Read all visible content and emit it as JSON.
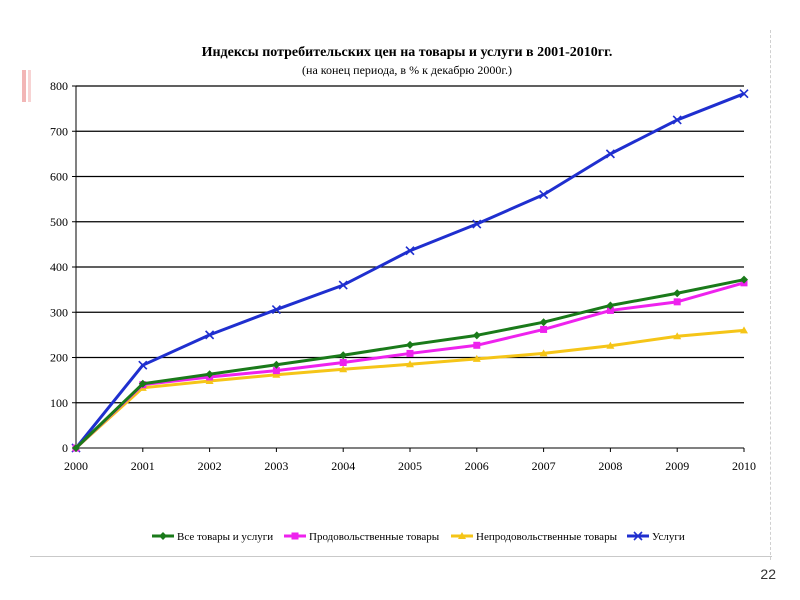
{
  "page_number": "22",
  "chart_data": {
    "type": "line",
    "title": "Индексы потребительских цен на товары и услуги в 2001-2010гг.",
    "subtitle": "(на конец периода, в % к декабрю 2000г.)",
    "xlabel": "",
    "ylabel": "",
    "x": [
      "2000",
      "2001",
      "2002",
      "2003",
      "2004",
      "2005",
      "2006",
      "2007",
      "2008",
      "2009",
      "2010"
    ],
    "ylim": [
      0,
      800
    ],
    "yticks": [
      0,
      100,
      200,
      300,
      400,
      500,
      600,
      700,
      800
    ],
    "grid": "horizontal",
    "legend_position": "bottom",
    "series": [
      {
        "name": "Все товары и услуги",
        "color": "#1a7a1a",
        "marker": "diamond",
        "values": [
          0,
          142,
          163,
          184,
          205,
          228,
          249,
          278,
          315,
          342,
          372
        ]
      },
      {
        "name": "Продовольственные товары",
        "color": "#ee22ee",
        "marker": "square",
        "values": [
          0,
          140,
          157,
          171,
          189,
          209,
          227,
          262,
          304,
          323,
          365
        ]
      },
      {
        "name": "Непродовольственные товары",
        "color": "#f5c518",
        "marker": "triangle",
        "values": [
          0,
          133,
          148,
          162,
          174,
          185,
          197,
          209,
          226,
          247,
          260
        ]
      },
      {
        "name": "Услуги",
        "color": "#1f2fcf",
        "marker": "x",
        "values": [
          0,
          183,
          250,
          306,
          360,
          436,
          495,
          560,
          650,
          725,
          783
        ]
      }
    ]
  }
}
